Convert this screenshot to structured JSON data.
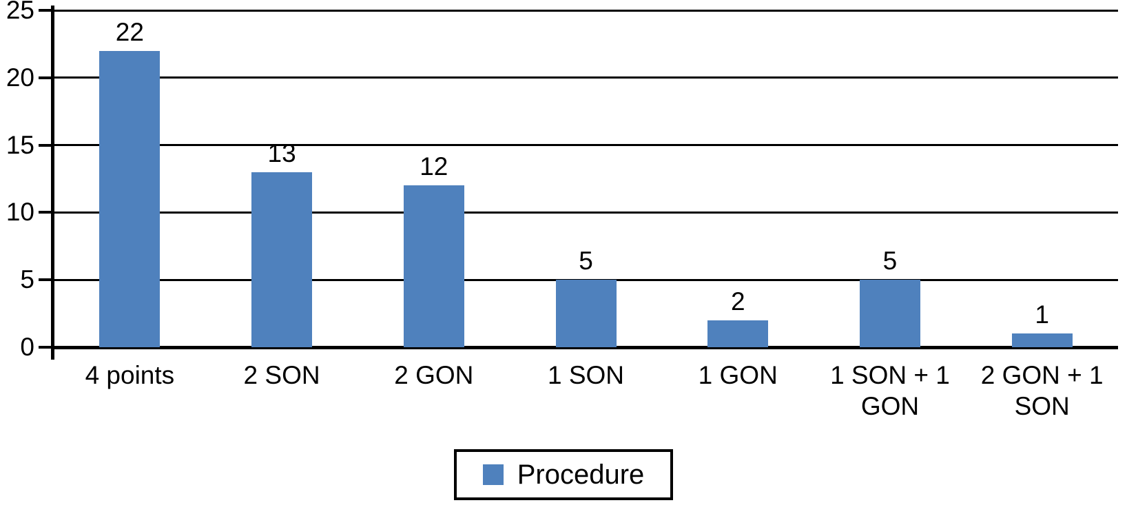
{
  "chart_data": {
    "type": "bar",
    "title": "",
    "xlabel": "",
    "ylabel": "",
    "categories": [
      "4 points",
      "2 SON",
      "2 GON",
      "1 SON",
      "1 GON",
      "1 SON + 1 GON",
      "2 GON + 1 SON"
    ],
    "values": [
      22,
      13,
      12,
      5,
      2,
      5,
      1
    ],
    "series_name": "Procedure",
    "data_labels": [
      "22",
      "13",
      "12",
      "5",
      "2",
      "5",
      "1"
    ],
    "ylim": [
      0,
      25
    ],
    "yticks": [
      0,
      5,
      10,
      15,
      20,
      25
    ],
    "grid": true,
    "legend_position": "bottom-center",
    "bar_color": "#4F81BD",
    "axis_color": "#000000",
    "background_color": "#FFFFFF"
  },
  "legend": {
    "label": "Procedure",
    "swatch_color": "#4F81BD"
  }
}
